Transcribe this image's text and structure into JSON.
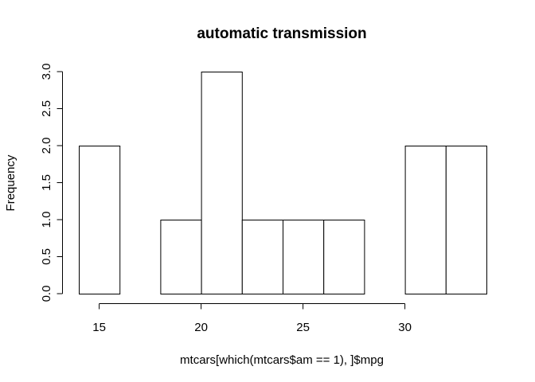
{
  "chart_data": {
    "type": "bar",
    "title": "automatic transmission",
    "xlabel": "mtcars[which(mtcars$am == 1), ]$mpg",
    "ylabel": "Frequency",
    "bins": [
      {
        "start": 14,
        "end": 16,
        "count": 2
      },
      {
        "start": 16,
        "end": 18,
        "count": 0
      },
      {
        "start": 18,
        "end": 20,
        "count": 1
      },
      {
        "start": 20,
        "end": 22,
        "count": 3
      },
      {
        "start": 22,
        "end": 24,
        "count": 1
      },
      {
        "start": 24,
        "end": 26,
        "count": 1
      },
      {
        "start": 26,
        "end": 28,
        "count": 1
      },
      {
        "start": 28,
        "end": 30,
        "count": 0
      },
      {
        "start": 30,
        "end": 32,
        "count": 2
      },
      {
        "start": 32,
        "end": 34,
        "count": 2
      }
    ],
    "x_ticks": [
      15,
      20,
      25,
      30
    ],
    "x_tick_labels": [
      "15",
      "20",
      "25",
      "30"
    ],
    "y_ticks": [
      0,
      0.5,
      1,
      1.5,
      2,
      2.5,
      3
    ],
    "y_tick_labels": [
      "0.0",
      "0.5",
      "1.0",
      "1.5",
      "2.0",
      "2.5",
      "3.0"
    ],
    "xlim": [
      14,
      34
    ],
    "ylim": [
      0,
      3
    ],
    "grid": false,
    "legend": "none",
    "colors": {
      "bar_fill": "#ffffff",
      "bar_stroke": "#000000",
      "background": "#ffffff"
    }
  }
}
